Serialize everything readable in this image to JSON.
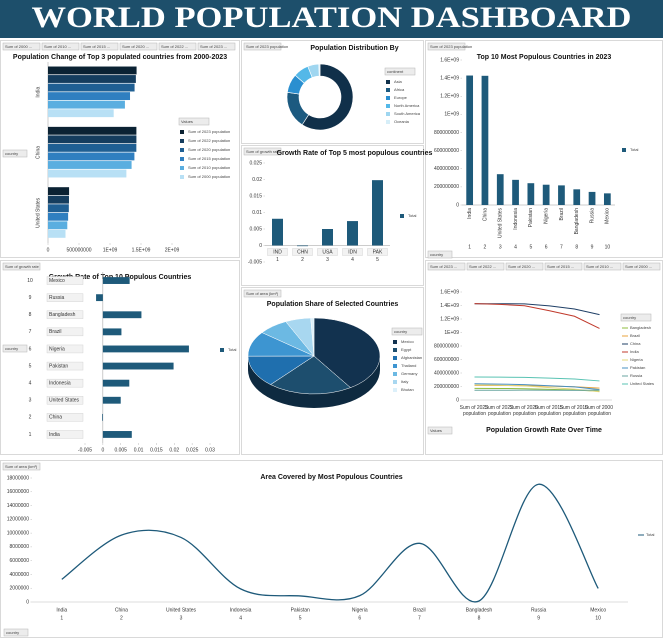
{
  "header": {
    "title": "WORLD POPULATION DASHBOARD"
  },
  "chart_data": [
    {
      "type": "barh",
      "title": "Population Change of Top 3 populated countries from 2000-2023",
      "filters": [
        "Sum of 2000 ...",
        "Sum of 2010 ...",
        "Sum of 2015 ...",
        "Sum of 2020 ...",
        "Sum of 2022 ...",
        "Sum of 2023 ..."
      ],
      "axis_filter": "country",
      "legend_title": "Values",
      "legend": "right",
      "categories": [
        "India",
        "China",
        "United States"
      ],
      "series": [
        {
          "name": "Sum of 2023 population",
          "color": "#0b2233",
          "values": [
            1428627663,
            1425671352,
            339996563
          ]
        },
        {
          "name": "Sum of 2022 population",
          "color": "#153d5e",
          "values": [
            1417173173,
            1425887337,
            338289857
          ]
        },
        {
          "name": "Sum of 2020 population",
          "color": "#1f5f93",
          "values": [
            1396387127,
            1424929781,
            335942003
          ]
        },
        {
          "name": "Sum of 2015 population",
          "color": "#2f7fc0",
          "values": [
            1322866505,
            1393715448,
            324607776
          ]
        },
        {
          "name": "Sum of 2010 population",
          "color": "#5aaee0",
          "values": [
            1240613620,
            1348191368,
            311182845
          ]
        },
        {
          "name": "Sum of 2000 population",
          "color": "#b8e0f5",
          "values": [
            1059633675,
            1264099069,
            282398554
          ]
        }
      ],
      "xlim": [
        0,
        2000000000
      ],
      "xticks": [
        0,
        500000000,
        {
          "value": 1000000000,
          "label": "1E+09"
        },
        {
          "value": 1500000000,
          "label": "1.5E+09"
        },
        {
          "value": 2000000000,
          "label": "2E+09"
        }
      ]
    },
    {
      "type": "donut",
      "title": "Population Distribution By",
      "filters": [
        "Sum of 2023 population"
      ],
      "legend_title": "continent",
      "legend": "right",
      "categories": [
        "Asia",
        "Africa",
        "Europe",
        "North America",
        "South America",
        "Oceania"
      ],
      "values": [
        4753079727,
        1460481772,
        740433713,
        604155146,
        439719009,
        45575769
      ],
      "colors": [
        "#10304a",
        "#1c5a80",
        "#2a8fd0",
        "#54b8e8",
        "#9fd6f0",
        "#d6eef8"
      ]
    },
    {
      "type": "bar",
      "title": "Top 10 Most Populous Countries in 2023",
      "filters": [
        "Sum of 2023 population"
      ],
      "axis_filter": "country",
      "legend": "right",
      "rotate_labels": true,
      "categories": [
        "India",
        "China",
        "United States",
        "Indonesia",
        "Pakistan",
        "Nigeria",
        "Brazil",
        "Bangladesh",
        "Russia",
        "Mexico"
      ],
      "category_numbers": [
        1,
        2,
        3,
        4,
        5,
        6,
        7,
        8,
        9,
        10
      ],
      "series": [
        {
          "name": "Total",
          "color": "#1e5a7a",
          "values": [
            1428627663,
            1425671352,
            339996563,
            277534122,
            240485658,
            223804632,
            216422446,
            172954319,
            144444359,
            128455567
          ]
        }
      ],
      "ylim": [
        0,
        1600000000
      ],
      "yticks": [
        0,
        200000000,
        400000000,
        600000000,
        800000000,
        {
          "value": 1000000000,
          "label": "1E+09"
        },
        {
          "value": 1200000000,
          "label": "1.2E+09"
        },
        {
          "value": 1400000000,
          "label": "1.4E+09"
        },
        {
          "value": 1600000000,
          "label": "1.6E+09"
        }
      ]
    },
    {
      "type": "bar",
      "title": "Growth Rate of Top 5 most populous countries",
      "filters": [
        "Sum of growth rate"
      ],
      "legend": "right",
      "categories": [
        "IND",
        "CHN",
        "USA",
        "IDN",
        "PAK"
      ],
      "category_numbers": [
        1,
        2,
        3,
        4,
        5
      ],
      "series": [
        {
          "name": "Total",
          "color": "#1e5a7a",
          "values": [
            0.0081,
            -0.0002,
            0.005,
            0.0074,
            0.0198
          ]
        }
      ],
      "ylim": [
        -0.005,
        0.025
      ],
      "yticks": [
        -0.005,
        0,
        0.005,
        0.01,
        0.015,
        0.02,
        0.025
      ]
    },
    {
      "type": "barh",
      "title": "Growth Rate of Top 10 Populous Countries",
      "filters": [
        "Sum of growth rate"
      ],
      "axis_filter": "country",
      "legend": "right",
      "categories": [
        "India",
        "China",
        "United States",
        "Indonesia",
        "Pakistan",
        "Nigeria",
        "Brazil",
        "Bangladesh",
        "Russia",
        "Mexico"
      ],
      "category_numbers": [
        1,
        2,
        3,
        4,
        5,
        6,
        7,
        8,
        9,
        10
      ],
      "series": [
        {
          "name": "Total",
          "color": "#1e5a7a",
          "values": [
            0.0081,
            -0.0002,
            0.005,
            0.0074,
            0.0198,
            0.0241,
            0.0052,
            0.0108,
            -0.0019,
            0.0075
          ]
        }
      ],
      "xlim": [
        -0.005,
        0.03
      ],
      "xticks": [
        -0.005,
        0,
        0.005,
        0.01,
        0.015,
        0.02,
        0.025,
        0.03
      ]
    },
    {
      "type": "pie",
      "title": "Population Share of Selected Countries",
      "filters": [
        "Sum of area (km²)"
      ],
      "legend_title": "country",
      "legend": "right",
      "categories": [
        "Mexico",
        "Egypt",
        "Afghanistan",
        "Thailand",
        "Germany",
        "Italy",
        "Bhutan"
      ],
      "values": [
        1964375,
        1002450,
        652230,
        513120,
        357114,
        301336,
        38394
      ],
      "colors": [
        "#12324f",
        "#1d4e6e",
        "#1f6fae",
        "#3d95d1",
        "#6cb9e3",
        "#a8d7f0",
        "#dcf0fa"
      ]
    },
    {
      "type": "line",
      "title": "Population Growth Rate Over Time",
      "filters": [
        "Sum of 2023 ...",
        "Sum of 2022 ...",
        "Sum of 2020 ...",
        "Sum of 2015 ...",
        "Sum of 2010 ...",
        "Sum of 2000 ..."
      ],
      "axis_filter": "Values",
      "legend_title": "country",
      "legend": "right",
      "categories": [
        "Sum of 2023 population",
        "Sum of 2022 population",
        "Sum of 2020 population",
        "Sum of 2015 population",
        "Sum of 2010 population",
        "Sum of 2000 population"
      ],
      "series": [
        {
          "name": "Bangladesh",
          "color": "#8fbc3f",
          "values": [
            172954319,
            171186372,
            167420951,
            157830000,
            148391139,
            129193327
          ]
        },
        {
          "name": "Brazil",
          "color": "#e8a33c",
          "values": [
            216422446,
            215313498,
            213196304,
            205188205,
            196353492,
            175873720
          ]
        },
        {
          "name": "China",
          "color": "#1f3f66",
          "values": [
            1425671352,
            1425887337,
            1424929781,
            1393715448,
            1348191368,
            1264099069
          ]
        },
        {
          "name": "India",
          "color": "#c0392b",
          "values": [
            1428627663,
            1417173173,
            1396387127,
            1322866505,
            1240613620,
            1059633675
          ]
        },
        {
          "name": "Nigeria",
          "color": "#e3d77a",
          "values": [
            223804632,
            218541212,
            208327405,
            183995785,
            160952853,
            122851984
          ]
        },
        {
          "name": "Pakistan",
          "color": "#4a90c2",
          "values": [
            240485658,
            235824862,
            227196741,
            210969298,
            194454498,
            154369924
          ]
        },
        {
          "name": "Russia",
          "color": "#6aa5a0",
          "values": [
            144444359,
            144713314,
            145617329,
            144668389,
            143242599,
            146844839
          ]
        },
        {
          "name": "United States",
          "color": "#59c3b3",
          "values": [
            339996563,
            338289857,
            335942003,
            324607776,
            311182845,
            282398554
          ]
        }
      ],
      "ylim": [
        0,
        1600000000
      ],
      "yticks": [
        0,
        200000000,
        400000000,
        600000000,
        800000000,
        {
          "value": 1000000000,
          "label": "1E+09"
        },
        {
          "value": 1200000000,
          "label": "1.2E+09"
        },
        {
          "value": 1400000000,
          "label": "1.4E+09"
        },
        {
          "value": 1600000000,
          "label": "1.6E+09"
        }
      ]
    },
    {
      "type": "line",
      "smooth": true,
      "title": "Area Covered by Most Populous Countries",
      "filters": [
        "Sum of area (km²)"
      ],
      "axis_filter": "country",
      "legend": "right",
      "categories": [
        "India",
        "China",
        "United States",
        "Indonesia",
        "Pakistan",
        "Nigeria",
        "Brazil",
        "Bangladesh",
        "Russia",
        "Mexico"
      ],
      "category_numbers": [
        1,
        2,
        3,
        4,
        5,
        6,
        7,
        8,
        9,
        10
      ],
      "series": [
        {
          "name": "Total",
          "color": "#1e5a7a",
          "values": [
            3287590,
            9706961,
            9372610,
            1904569,
            881912,
            923768,
            8515767,
            147570,
            17098242,
            1964375
          ]
        }
      ],
      "ylim": [
        0,
        18000000
      ],
      "yticks": [
        0,
        2000000,
        4000000,
        6000000,
        8000000,
        10000000,
        12000000,
        14000000,
        16000000,
        18000000
      ]
    }
  ]
}
